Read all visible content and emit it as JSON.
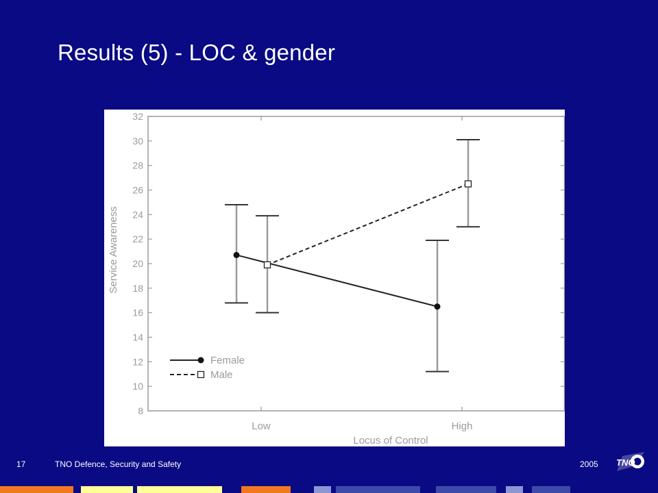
{
  "slide": {
    "title": "Results (5) - LOC & gender",
    "page_number": "17",
    "organization": "TNO Defence, Security and Safety",
    "year": "2005",
    "logo_text": "TNO"
  },
  "colors": {
    "background": "#0a0a84",
    "bar_orange": "#f07820",
    "bar_yellow": "#ffff99",
    "bar_blue": "#3c4aa8",
    "bar_light_blue": "#8c96d2"
  },
  "chart_data": {
    "type": "line",
    "xlabel": "Locus of Control",
    "ylabel": "Service Awareness",
    "categories": [
      "Low",
      "High"
    ],
    "ylim": [
      8,
      32
    ],
    "yticks": [
      8,
      10,
      12,
      14,
      16,
      18,
      20,
      22,
      24,
      26,
      28,
      30,
      32
    ],
    "grid": false,
    "legend_position": "bottom-left",
    "series": [
      {
        "name": "Female",
        "line_style": "solid",
        "marker": "filled-circle",
        "values": [
          20.7,
          16.5
        ],
        "error_low": [
          16.8,
          11.2
        ],
        "error_high": [
          24.8,
          21.9
        ]
      },
      {
        "name": "Male",
        "line_style": "dashed",
        "marker": "open-square",
        "values": [
          19.9,
          26.5
        ],
        "error_low": [
          16.0,
          23.0
        ],
        "error_high": [
          23.9,
          30.1
        ]
      }
    ]
  }
}
